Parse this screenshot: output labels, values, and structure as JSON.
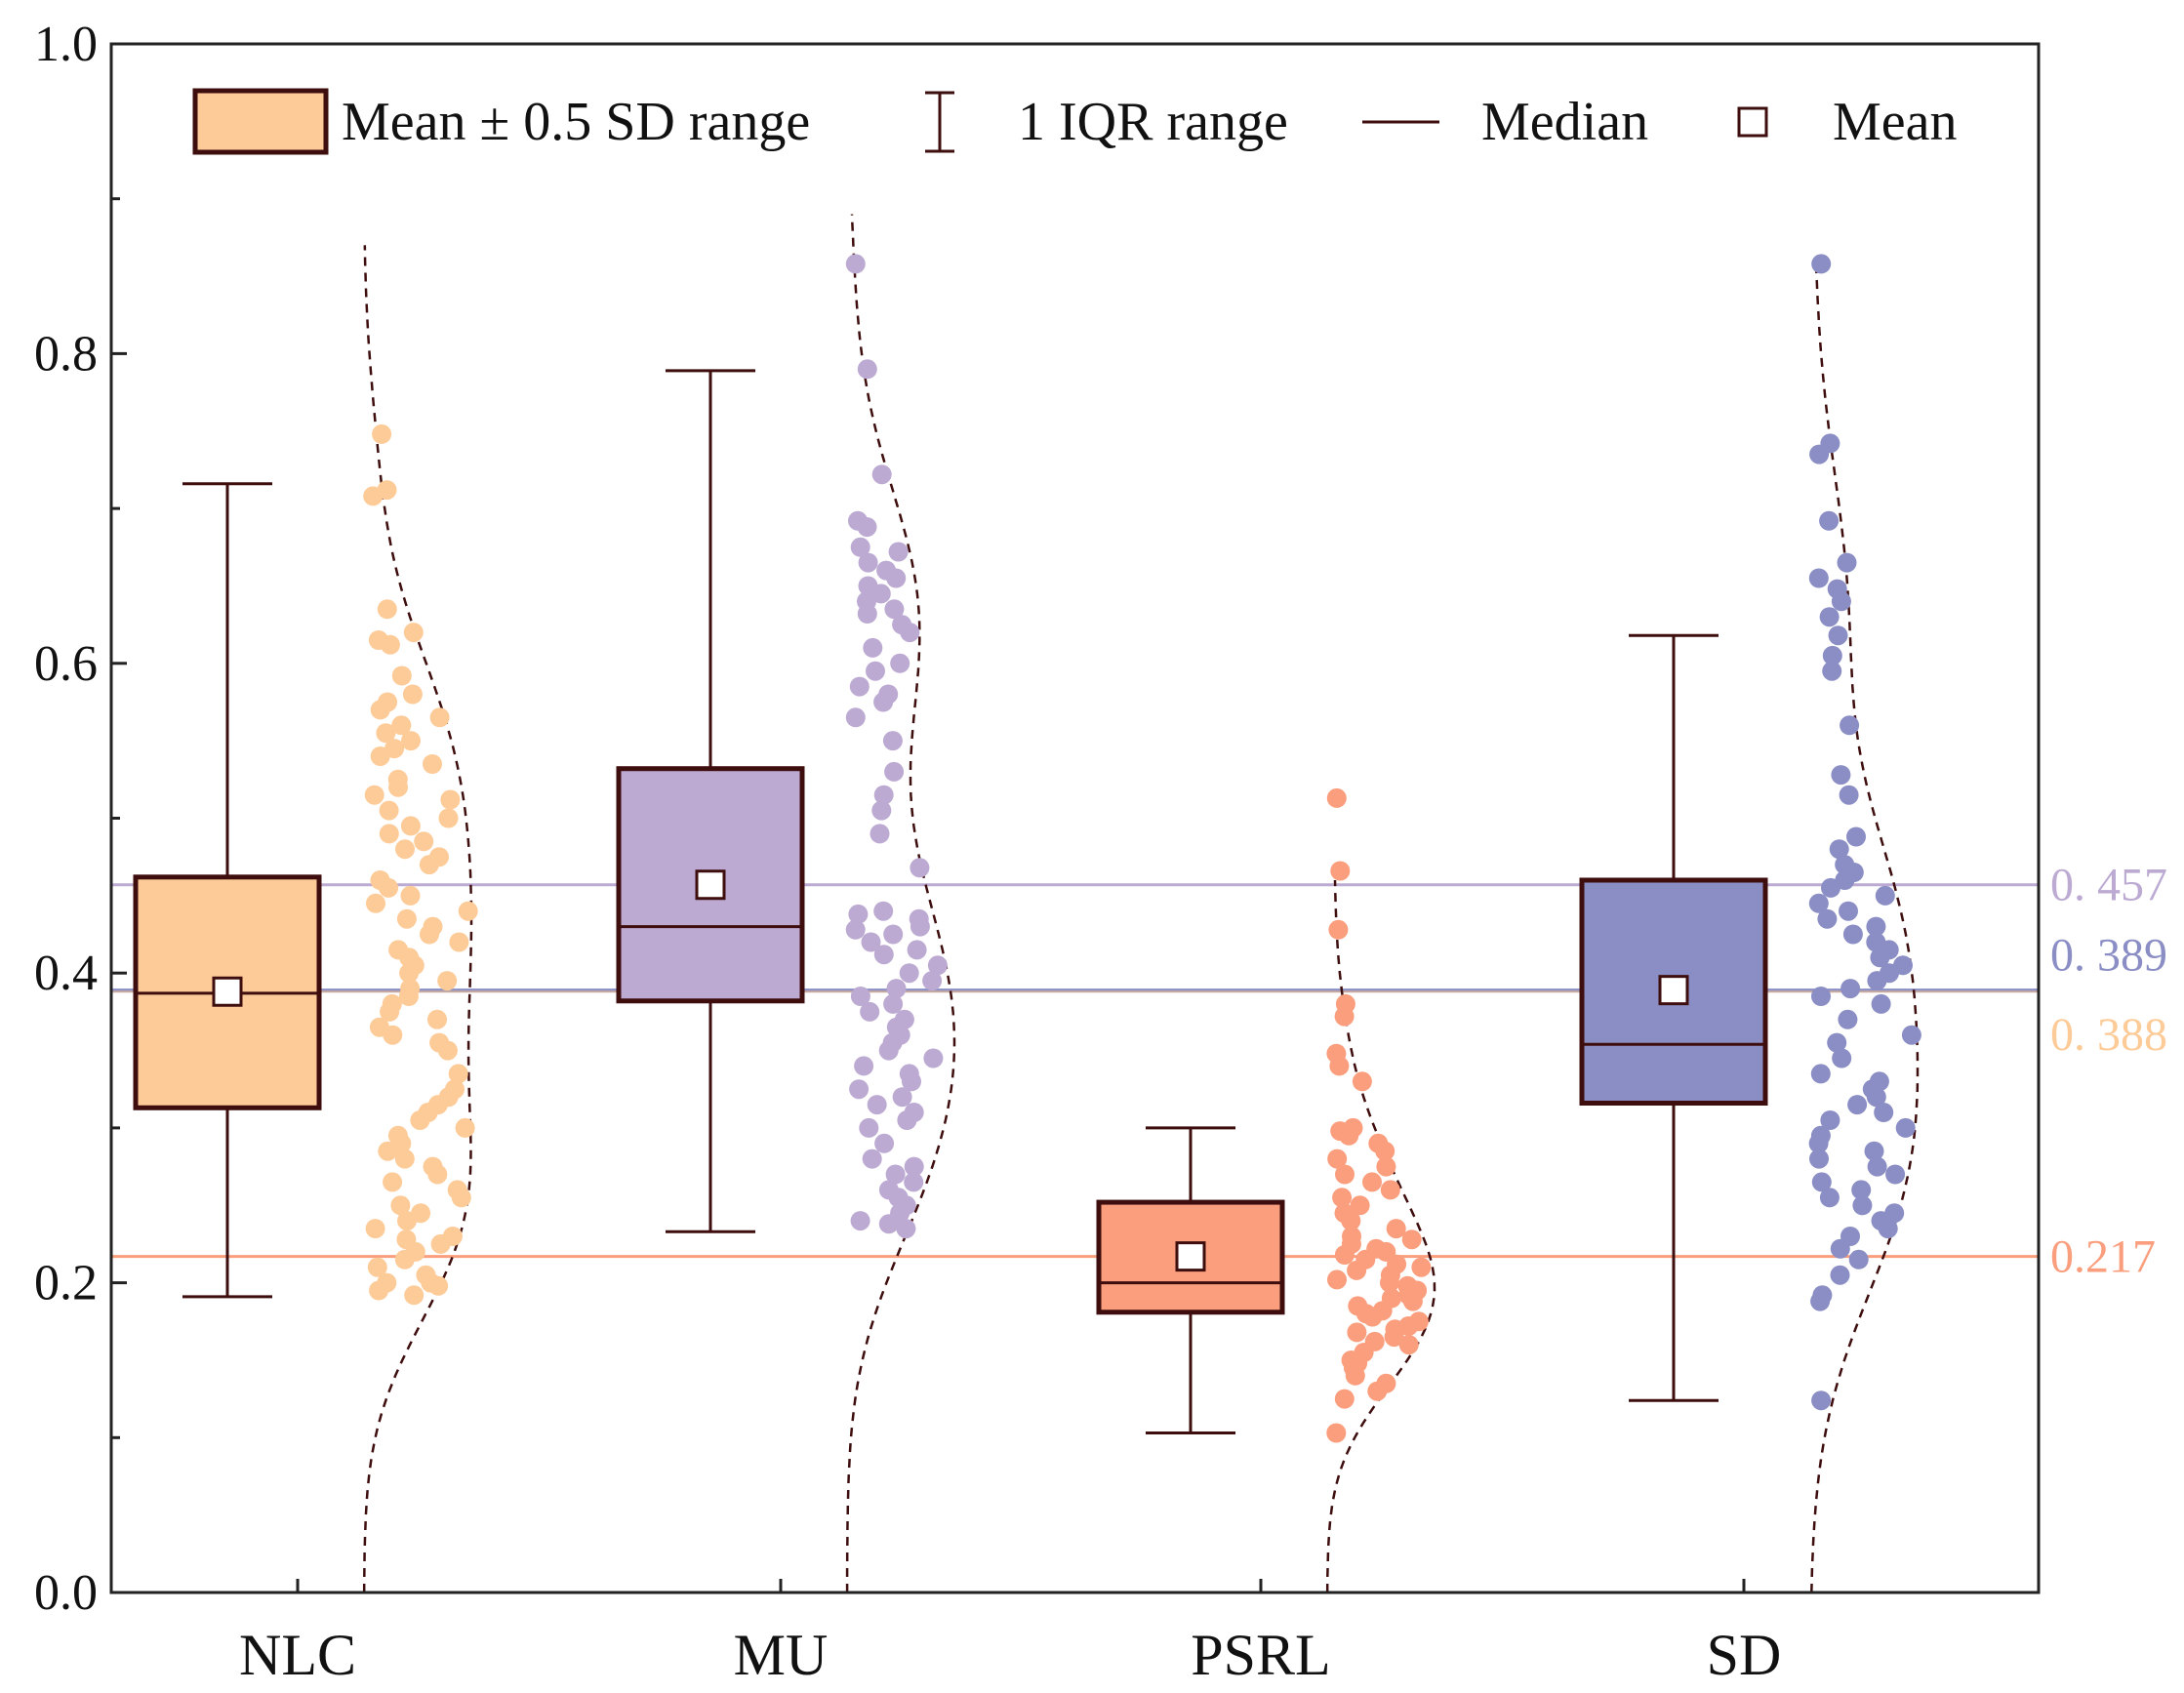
{
  "chart_data": {
    "type": "box",
    "title": "",
    "xlabel": "",
    "ylabel": "",
    "ylim": [
      0,
      1.0
    ],
    "y_ticks": [
      "0.0",
      "0.2",
      "0.4",
      "0.6",
      "0.8",
      "1.0"
    ],
    "y_tick_values": [
      0,
      0.2,
      0.4,
      0.6,
      0.8,
      1.0
    ],
    "legend": {
      "position": "top",
      "items": [
        "Mean ± 0.5 SD range",
        "1 IQR range",
        "Median",
        "Mean"
      ]
    },
    "series": [
      {
        "name": "NLC",
        "color": "#fdcb98",
        "line_color": "#fdcb98",
        "mean": 0.388,
        "box_low": 0.313,
        "box_high": 0.462,
        "median": 0.387,
        "whisker_low": 0.191,
        "whisker_high": 0.716,
        "density_max": 0.87,
        "points": [
          0.748,
          0.712,
          0.708,
          0.635,
          0.62,
          0.615,
          0.612,
          0.592,
          0.58,
          0.575,
          0.57,
          0.565,
          0.56,
          0.555,
          0.55,
          0.545,
          0.54,
          0.535,
          0.525,
          0.52,
          0.515,
          0.512,
          0.505,
          0.5,
          0.495,
          0.49,
          0.485,
          0.48,
          0.475,
          0.47,
          0.46,
          0.455,
          0.45,
          0.445,
          0.44,
          0.435,
          0.43,
          0.425,
          0.42,
          0.415,
          0.41,
          0.405,
          0.4,
          0.395,
          0.39,
          0.385,
          0.38,
          0.375,
          0.37,
          0.365,
          0.36,
          0.355,
          0.35,
          0.335,
          0.325,
          0.32,
          0.315,
          0.31,
          0.305,
          0.3,
          0.295,
          0.29,
          0.285,
          0.28,
          0.275,
          0.27,
          0.265,
          0.26,
          0.255,
          0.25,
          0.245,
          0.24,
          0.235,
          0.23,
          0.228,
          0.225,
          0.22,
          0.215,
          0.21,
          0.205,
          0.2,
          0.2,
          0.198,
          0.195,
          0.192
        ]
      },
      {
        "name": "MU",
        "color": "#bcaad2",
        "line_color": "#bcaad2",
        "mean": 0.457,
        "box_low": 0.382,
        "box_high": 0.532,
        "median": 0.43,
        "whisker_low": 0.233,
        "whisker_high": 0.789,
        "density_max": 0.89,
        "points": [
          0.858,
          0.79,
          0.722,
          0.692,
          0.688,
          0.675,
          0.672,
          0.665,
          0.66,
          0.655,
          0.65,
          0.645,
          0.64,
          0.635,
          0.632,
          0.625,
          0.62,
          0.61,
          0.6,
          0.595,
          0.585,
          0.58,
          0.575,
          0.565,
          0.55,
          0.53,
          0.515,
          0.505,
          0.49,
          0.468,
          0.44,
          0.438,
          0.435,
          0.43,
          0.428,
          0.425,
          0.42,
          0.415,
          0.412,
          0.405,
          0.4,
          0.395,
          0.39,
          0.385,
          0.38,
          0.375,
          0.37,
          0.365,
          0.36,
          0.355,
          0.35,
          0.345,
          0.34,
          0.335,
          0.33,
          0.325,
          0.32,
          0.315,
          0.31,
          0.305,
          0.3,
          0.29,
          0.28,
          0.275,
          0.27,
          0.265,
          0.26,
          0.255,
          0.25,
          0.245,
          0.24,
          0.238,
          0.235
        ]
      },
      {
        "name": "PSRL",
        "color": "#fa9e7d",
        "line_color": "#fa9e7d",
        "mean": 0.217,
        "box_low": 0.181,
        "box_high": 0.252,
        "median": 0.2,
        "whisker_low": 0.103,
        "whisker_high": 0.3,
        "density_max": 0.46,
        "points": [
          0.513,
          0.466,
          0.428,
          0.38,
          0.372,
          0.348,
          0.34,
          0.33,
          0.3,
          0.298,
          0.295,
          0.29,
          0.285,
          0.28,
          0.275,
          0.27,
          0.265,
          0.26,
          0.255,
          0.25,
          0.245,
          0.24,
          0.235,
          0.23,
          0.228,
          0.225,
          0.222,
          0.22,
          0.218,
          0.215,
          0.212,
          0.21,
          0.208,
          0.205,
          0.202,
          0.2,
          0.198,
          0.195,
          0.192,
          0.19,
          0.188,
          0.185,
          0.182,
          0.18,
          0.178,
          0.175,
          0.172,
          0.17,
          0.168,
          0.165,
          0.162,
          0.16,
          0.155,
          0.15,
          0.148,
          0.145,
          0.14,
          0.135,
          0.13,
          0.125,
          0.103
        ]
      },
      {
        "name": "SD",
        "color": "#8a8ec4",
        "line_color": "#8a8ec4",
        "mean": 0.389,
        "box_low": 0.316,
        "box_high": 0.46,
        "median": 0.354,
        "whisker_low": 0.124,
        "whisker_high": 0.618,
        "density_max": 0.86,
        "points": [
          0.858,
          0.742,
          0.735,
          0.692,
          0.665,
          0.655,
          0.648,
          0.64,
          0.63,
          0.618,
          0.605,
          0.595,
          0.56,
          0.528,
          0.515,
          0.488,
          0.48,
          0.47,
          0.465,
          0.46,
          0.455,
          0.45,
          0.445,
          0.44,
          0.435,
          0.43,
          0.425,
          0.42,
          0.415,
          0.41,
          0.405,
          0.4,
          0.395,
          0.39,
          0.385,
          0.38,
          0.37,
          0.36,
          0.355,
          0.345,
          0.335,
          0.33,
          0.325,
          0.32,
          0.315,
          0.31,
          0.305,
          0.3,
          0.295,
          0.29,
          0.285,
          0.28,
          0.275,
          0.27,
          0.265,
          0.26,
          0.255,
          0.25,
          0.245,
          0.24,
          0.235,
          0.23,
          0.222,
          0.215,
          0.205,
          0.192,
          0.188,
          0.124
        ]
      }
    ],
    "reference_lines": [
      {
        "value": 0.457,
        "label": "0. 457",
        "color": "#bcaad2"
      },
      {
        "value": 0.389,
        "label": "0. 389",
        "color": "#8a8ec4"
      },
      {
        "value": 0.388,
        "label": "0. 388",
        "color": "#fdcb98"
      },
      {
        "value": 0.217,
        "label": "0.217",
        "color": "#fa9e7d"
      }
    ],
    "box_outline_color": "#3e0d0d"
  }
}
